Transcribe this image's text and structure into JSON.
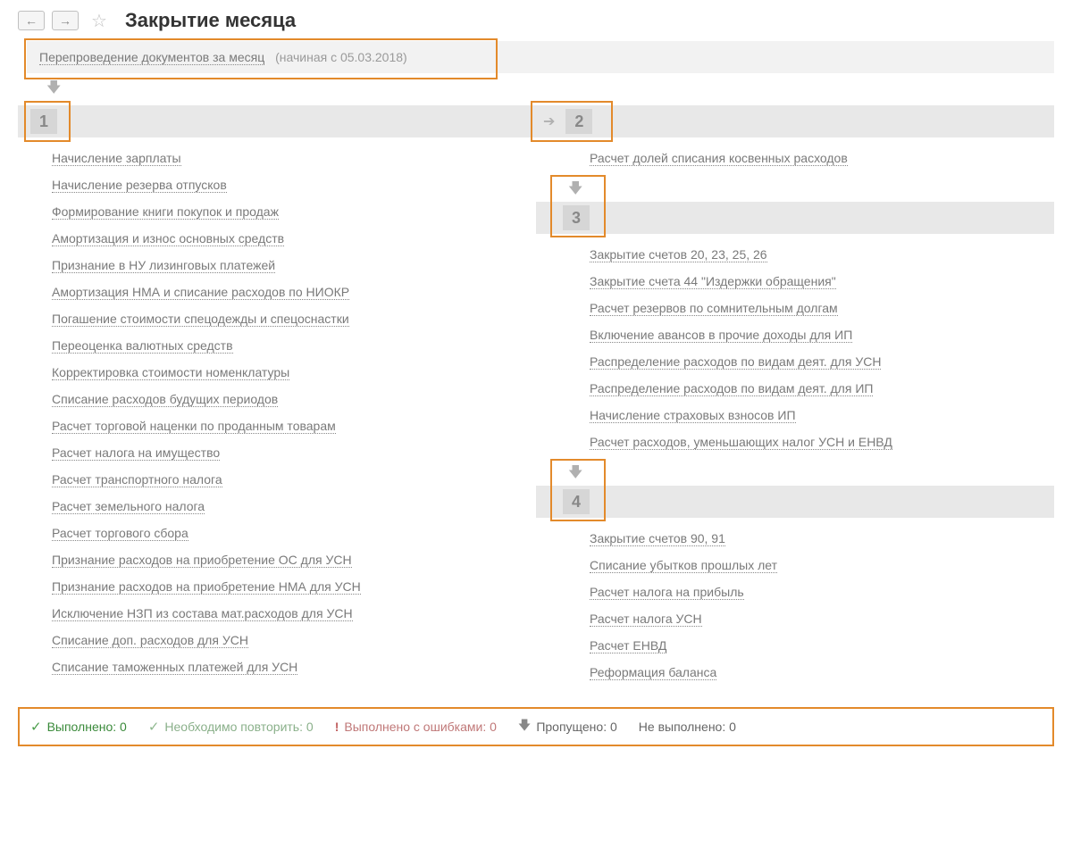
{
  "page_title": "Закрытие месяца",
  "repost": {
    "label": "Перепроведение документов за месяц",
    "hint": "(начиная с 05.03.2018)"
  },
  "groups": {
    "g1": {
      "num": "1",
      "items": [
        "Начисление зарплаты",
        "Начисление резерва отпусков",
        "Формирование книги покупок и продаж",
        "Амортизация и износ основных средств",
        "Признание в НУ лизинговых платежей",
        "Амортизация НМА и списание расходов по НИОКР",
        "Погашение стоимости спецодежды и спецоснастки",
        "Переоценка валютных средств",
        "Корректировка стоимости номенклатуры",
        "Списание расходов будущих периодов",
        "Расчет торговой наценки по проданным товарам",
        "Расчет налога на имущество",
        "Расчет транспортного налога",
        "Расчет земельного налога",
        "Расчет торгового сбора",
        "Признание расходов на приобретение ОС для УСН",
        "Признание расходов на приобретение НМА для УСН",
        "Исключение НЗП из состава мат.расходов для УСН",
        "Списание доп. расходов для УСН",
        "Списание таможенных платежей для УСН"
      ]
    },
    "g2": {
      "num": "2",
      "items": [
        "Расчет долей списания косвенных расходов"
      ]
    },
    "g3": {
      "num": "3",
      "items": [
        "Закрытие счетов 20, 23, 25, 26",
        "Закрытие счета 44 \"Издержки обращения\"",
        "Расчет резервов по сомнительным долгам",
        "Включение авансов в прочие доходы для ИП",
        "Распределение расходов по видам деят. для УСН",
        "Распределение расходов по видам деят. для ИП",
        "Начисление страховых взносов ИП",
        "Расчет расходов, уменьшающих налог УСН и ЕНВД"
      ]
    },
    "g4": {
      "num": "4",
      "items": [
        "Закрытие счетов 90, 91",
        "Списание убытков прошлых лет",
        "Расчет налога на прибыль",
        "Расчет налога УСН",
        "Расчет ЕНВД",
        "Реформация баланса"
      ]
    }
  },
  "status": {
    "done": {
      "label": "Выполнено:",
      "value": "0"
    },
    "repeat": {
      "label": "Необходимо повторить:",
      "value": "0"
    },
    "errors": {
      "label": "Выполнено с ошибками:",
      "value": "0"
    },
    "skipped": {
      "label": "Пропущено:",
      "value": "0"
    },
    "notdone": {
      "label": "Не выполнено:",
      "value": "0"
    }
  },
  "colors": {
    "highlight": "#e38a2b",
    "link": "#7a7a7a",
    "group_bg": "#e8e8e8",
    "num_bg": "#d6d6d6"
  }
}
